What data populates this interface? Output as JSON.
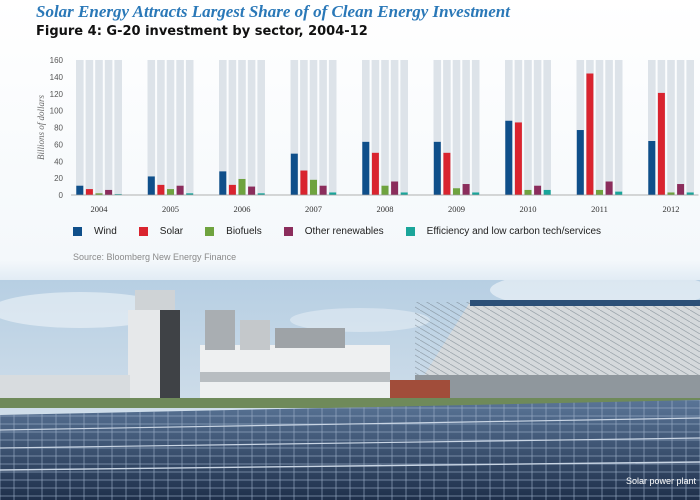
{
  "header": {
    "headline": "Solar Energy Attracts Largest Share of of Clean Energy Investment",
    "figure_title": "Figure 4: G-20 investment by sector, 2004-12"
  },
  "chart_data": {
    "type": "bar",
    "ylabel": "Billions of dollars",
    "ylim": [
      0,
      160
    ],
    "yticks": [
      0,
      20,
      40,
      60,
      80,
      100,
      120,
      140,
      160
    ],
    "categories": [
      "2004",
      "2005",
      "2006",
      "2007",
      "2008",
      "2009",
      "2010",
      "2011",
      "2012"
    ],
    "series": [
      {
        "name": "Wind",
        "color": "#0f4f8a",
        "values": [
          11,
          22,
          28,
          49,
          63,
          63,
          88,
          77,
          64
        ]
      },
      {
        "name": "Solar",
        "color": "#d9242f",
        "values": [
          7,
          12,
          12,
          29,
          50,
          50,
          86,
          144,
          121
        ]
      },
      {
        "name": "Biofuels",
        "color": "#6fa33f",
        "values": [
          2,
          7,
          19,
          18,
          11,
          8,
          6,
          6,
          3
        ]
      },
      {
        "name": "Other renewables",
        "color": "#8b2d5c",
        "values": [
          6,
          11,
          10,
          11,
          16,
          13,
          11,
          16,
          13
        ]
      },
      {
        "name": "Efficiency and low carbon tech/services",
        "color": "#1aa59a",
        "values": [
          1,
          2,
          2,
          3,
          3,
          3,
          6,
          4,
          3
        ]
      }
    ],
    "grid": false,
    "legend": "bottom"
  },
  "source": "Source: Bloomberg New Energy Finance",
  "photo": {
    "caption": "Solar power plant"
  }
}
